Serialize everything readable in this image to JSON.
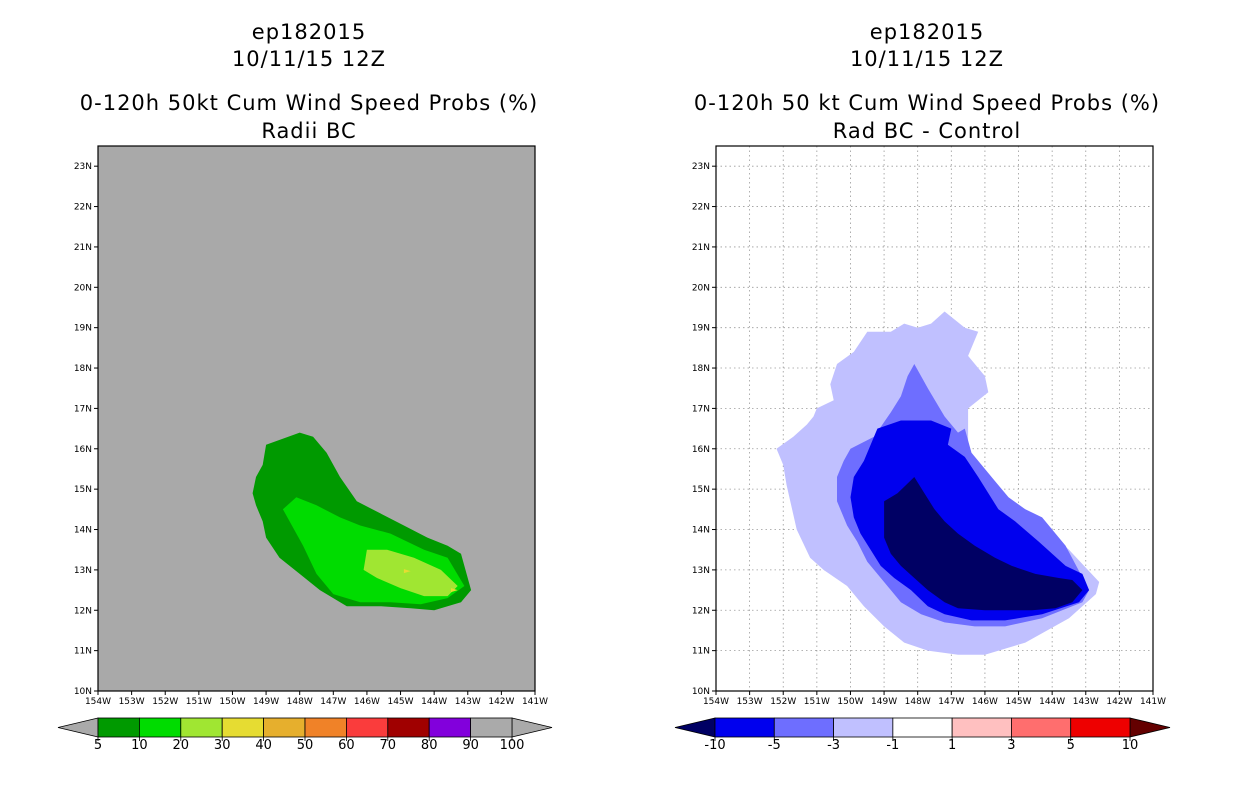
{
  "chart_data": [
    {
      "type": "contour",
      "id": "ep182015",
      "date": "10/11/15 12Z",
      "title": "0-120h 50kt Cum Wind Speed Probs (%)",
      "subtitle": "Radii BC",
      "x_ticks": [
        "154W",
        "153W",
        "152W",
        "151W",
        "150W",
        "149W",
        "148W",
        "147W",
        "146W",
        "145W",
        "144W",
        "143W",
        "142W",
        "141W"
      ],
      "y_ticks": [
        "10N",
        "11N",
        "12N",
        "13N",
        "14N",
        "15N",
        "16N",
        "17N",
        "18N",
        "19N",
        "20N",
        "21N",
        "22N",
        "23N"
      ],
      "xlim": [
        -154,
        -141
      ],
      "ylim": [
        10,
        23.5
      ],
      "grid": false,
      "background": "#a9a9a9",
      "colorbar": {
        "labels": [
          "5",
          "10",
          "20",
          "30",
          "40",
          "50",
          "60",
          "70",
          "80",
          "90",
          "100"
        ],
        "colors": [
          "#009a00",
          "#00dc00",
          "#a0e632",
          "#e6dc32",
          "#e6af2d",
          "#f08228",
          "#fa3c3c",
          "#a00000",
          "#8200dc",
          "#aaaaaa"
        ],
        "under_color": "#aaaaaa",
        "over_color": "#aaaaaa"
      },
      "levels": [
        {
          "label": "5-10",
          "color": "#009a00",
          "lon": [
            -149.0,
            -149.1,
            -149.3,
            -149.4,
            -149.3,
            -149.1,
            -149.0,
            -148.0,
            -147.6,
            -147.2,
            -146.8,
            -146.3,
            -145.6,
            -144.9,
            -144.2,
            -143.6,
            -143.2,
            -142.9,
            -143.2,
            -144.0,
            -144.7,
            -145.6,
            -146.6,
            -147.4,
            -148.0,
            -148.6
          ],
          "lat": [
            13.8,
            14.2,
            14.6,
            14.9,
            15.3,
            15.6,
            16.1,
            16.4,
            16.3,
            15.9,
            15.3,
            14.7,
            14.4,
            14.1,
            13.8,
            13.6,
            13.4,
            12.5,
            12.2,
            12.0,
            12.05,
            12.1,
            12.1,
            12.5,
            12.9,
            13.3
          ]
        },
        {
          "label": "10-20",
          "color": "#00dc00",
          "lon": [
            -148.5,
            -148.1,
            -147.5,
            -146.8,
            -146.2,
            -145.3,
            -144.3,
            -143.6,
            -143.1,
            -143.6,
            -144.4,
            -145.3,
            -146.2,
            -147.0,
            -147.5,
            -147.9
          ],
          "lat": [
            14.5,
            14.8,
            14.6,
            14.3,
            14.1,
            13.9,
            13.5,
            13.3,
            12.6,
            12.3,
            12.15,
            12.2,
            12.2,
            12.4,
            12.9,
            13.6
          ]
        },
        {
          "label": "20-30",
          "color": "#a0e632",
          "lon": [
            -146.0,
            -145.4,
            -144.6,
            -143.8,
            -143.3,
            -143.6,
            -144.3,
            -145.0,
            -145.7,
            -146.1,
            -146.0
          ],
          "lat": [
            13.5,
            13.5,
            13.3,
            13.0,
            12.6,
            12.35,
            12.35,
            12.55,
            12.8,
            13.0,
            13.5
          ]
        },
        {
          "label": "30-40",
          "color": "#e6dc32",
          "lon": [
            -144.9,
            -144.7,
            -144.9
          ],
          "lat": [
            13.02,
            12.97,
            12.92
          ]
        },
        {
          "label": "30-40b",
          "color": "#e6dc32",
          "lon": [
            -143.5,
            -143.3,
            -143.5
          ],
          "lat": [
            12.55,
            12.5,
            12.45
          ]
        }
      ]
    },
    {
      "type": "contour",
      "id": "ep182015",
      "date": "10/11/15 12Z",
      "title": "0-120h 50 kt Cum Wind Speed Probs (%)",
      "subtitle": "Rad BC - Control",
      "x_ticks": [
        "154W",
        "153W",
        "152W",
        "151W",
        "150W",
        "149W",
        "148W",
        "147W",
        "146W",
        "145W",
        "144W",
        "143W",
        "142W",
        "141W"
      ],
      "y_ticks": [
        "10N",
        "11N",
        "12N",
        "13N",
        "14N",
        "15N",
        "16N",
        "17N",
        "18N",
        "19N",
        "20N",
        "21N",
        "22N",
        "23N"
      ],
      "xlim": [
        -154,
        -141
      ],
      "ylim": [
        10,
        23.5
      ],
      "grid": true,
      "background": "#ffffff",
      "colorbar": {
        "labels": [
          "-10",
          "-5",
          "-3",
          "-1",
          "1",
          "3",
          "5",
          "10"
        ],
        "colors": [
          "#0000ee",
          "#6e6eff",
          "#c0c0ff",
          "#ffffff",
          "#ffc0c0",
          "#ff6e6e",
          "#ee0000"
        ],
        "under_color": "#000064",
        "over_color": "#640000"
      },
      "levels": [
        {
          "label": "-1 to -3",
          "color": "#c0c0ff",
          "lon": [
            -150.5,
            -150.6,
            -150.4,
            -149.9,
            -149.5,
            -148.8,
            -148.4,
            -148.0,
            -147.6,
            -147.2,
            -146.9,
            -146.6,
            -146.2,
            -146.5,
            -146.0,
            -145.9,
            -146.5,
            -146.5,
            -145.8,
            -145.3,
            -144.6,
            -143.5,
            -142.6,
            -142.7,
            -143.5,
            -144.8,
            -146.0,
            -146.8,
            -147.7,
            -148.4,
            -149.0,
            -149.6,
            -150.1,
            -150.8,
            -151.2,
            -151.6,
            -151.9,
            -152.0,
            -152.2,
            -151.7,
            -151.3,
            -151.1,
            -151.0
          ],
          "lat": [
            17.2,
            17.6,
            18.1,
            18.4,
            18.9,
            18.9,
            19.1,
            19.0,
            19.1,
            19.4,
            19.2,
            19.0,
            18.9,
            18.3,
            17.8,
            17.4,
            17.0,
            15.9,
            15.1,
            14.6,
            14.3,
            13.5,
            12.7,
            12.4,
            11.8,
            11.2,
            10.9,
            10.9,
            11.0,
            11.2,
            11.6,
            12.1,
            12.6,
            13.0,
            13.3,
            14.0,
            15.1,
            15.6,
            16.0,
            16.3,
            16.6,
            16.8,
            17.0
          ]
        },
        {
          "label": "-3 to -5",
          "color": "#6e6eff",
          "lon": [
            -149.3,
            -148.8,
            -148.5,
            -148.3,
            -148.1,
            -147.7,
            -147.2,
            -146.8,
            -146.6,
            -146.4,
            -145.7,
            -145.3,
            -144.8,
            -144.3,
            -143.6,
            -142.9,
            -143.1,
            -144.3,
            -145.4,
            -146.3,
            -147.2,
            -147.9,
            -148.5,
            -149.0,
            -149.5,
            -149.8,
            -150.1,
            -150.4,
            -150.4,
            -150.2,
            -150.0
          ],
          "lat": [
            16.3,
            16.9,
            17.3,
            17.8,
            18.1,
            17.5,
            16.8,
            16.4,
            16.5,
            15.9,
            15.2,
            14.8,
            14.5,
            14.3,
            13.6,
            12.5,
            12.2,
            11.8,
            11.6,
            11.6,
            11.7,
            11.9,
            12.2,
            12.7,
            13.2,
            13.7,
            14.1,
            14.7,
            15.3,
            15.7,
            16.0
          ]
        },
        {
          "label": "-5 to -10",
          "color": "#0000ee",
          "lon": [
            -149.6,
            -149.2,
            -148.5,
            -147.6,
            -147.0,
            -147.1,
            -146.6,
            -146.2,
            -145.6,
            -145.1,
            -144.4,
            -143.6,
            -143.1,
            -142.9,
            -143.2,
            -144.3,
            -145.4,
            -146.4,
            -147.2,
            -147.7,
            -148.2,
            -148.7,
            -149.1,
            -149.4,
            -149.7,
            -149.9,
            -150.0,
            -149.9
          ],
          "lat": [
            15.7,
            16.5,
            16.7,
            16.7,
            16.5,
            16.1,
            15.8,
            15.3,
            14.5,
            14.2,
            13.7,
            13.1,
            12.9,
            12.5,
            12.2,
            11.9,
            11.75,
            11.75,
            11.9,
            12.1,
            12.5,
            12.8,
            13.1,
            13.5,
            13.9,
            14.3,
            14.8,
            15.3
          ]
        },
        {
          "label": "< -10",
          "color": "#000064",
          "lon": [
            -149.0,
            -148.6,
            -148.1,
            -147.8,
            -147.5,
            -147.2,
            -146.8,
            -146.3,
            -145.7,
            -145.2,
            -144.5,
            -143.8,
            -143.4,
            -143.1,
            -143.4,
            -143.9,
            -144.6,
            -145.3,
            -146.0,
            -146.8,
            -147.2,
            -147.7,
            -148.1,
            -148.5,
            -148.8,
            -149.0,
            -149.0
          ],
          "lat": [
            14.7,
            14.9,
            15.3,
            14.9,
            14.5,
            14.2,
            13.9,
            13.6,
            13.3,
            13.1,
            12.9,
            12.8,
            12.75,
            12.5,
            12.2,
            12.05,
            12.0,
            12.0,
            12.0,
            12.05,
            12.2,
            12.5,
            12.8,
            13.1,
            13.4,
            13.8,
            14.3
          ]
        }
      ]
    }
  ]
}
